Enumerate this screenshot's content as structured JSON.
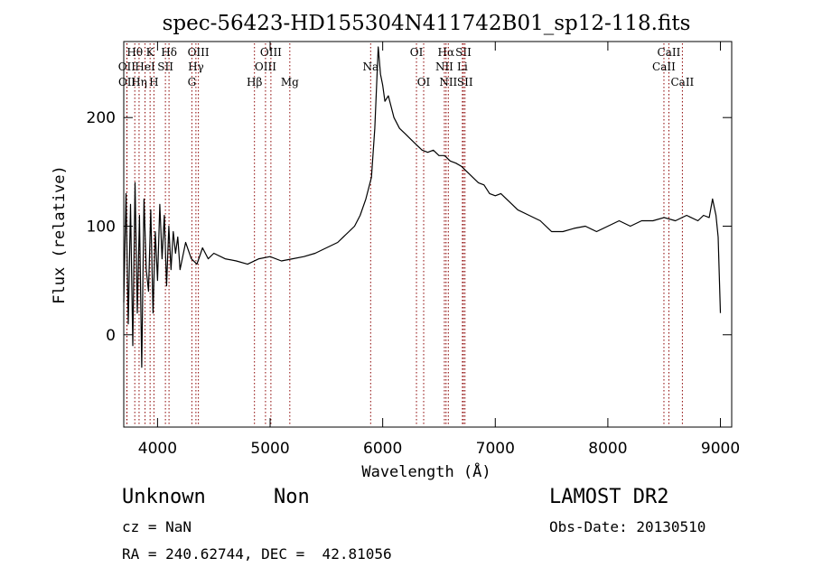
{
  "chart_data": {
    "type": "line",
    "title": "spec-56423-HD155304N411742B01_sp12-118.fits",
    "xlabel": "Wavelength (Å)",
    "ylabel": "Flux (relative)",
    "xlim": [
      3700,
      9100
    ],
    "ylim": [
      -85,
      270
    ],
    "x_ticks": [
      4000,
      5000,
      6000,
      7000,
      8000,
      9000
    ],
    "y_ticks": [
      0,
      100,
      200
    ],
    "grid": false,
    "line_color": "#000000",
    "marker_color": "#8b0000",
    "series": [
      {
        "x": [
          3700,
          3720,
          3740,
          3760,
          3780,
          3800,
          3820,
          3840,
          3860,
          3880,
          3900,
          3920,
          3940,
          3960,
          3980,
          4000,
          4020,
          4040,
          4060,
          4080,
          4100,
          4120,
          4140,
          4160,
          4180,
          4200,
          4250,
          4300,
          4350,
          4400,
          4450,
          4500,
          4600,
          4700,
          4800,
          4900,
          5000,
          5100,
          5200,
          5300,
          5400,
          5500,
          5600,
          5700,
          5750,
          5800,
          5850,
          5900,
          5930,
          5960,
          5980,
          6000,
          6020,
          6050,
          6100,
          6150,
          6200,
          6250,
          6300,
          6350,
          6400,
          6450,
          6500,
          6550,
          6600,
          6650,
          6700,
          6750,
          6800,
          6850,
          6900,
          6950,
          7000,
          7050,
          7100,
          7150,
          7200,
          7300,
          7400,
          7500,
          7600,
          7700,
          7800,
          7900,
          8000,
          8100,
          8200,
          8300,
          8400,
          8500,
          8600,
          8700,
          8800,
          8850,
          8900,
          8930,
          8950,
          8960,
          8980,
          9000
        ],
        "y": [
          30,
          130,
          10,
          120,
          -10,
          140,
          20,
          110,
          -30,
          125,
          60,
          40,
          115,
          20,
          95,
          50,
          120,
          70,
          110,
          45,
          100,
          60,
          95,
          75,
          90,
          60,
          85,
          70,
          65,
          80,
          70,
          75,
          70,
          68,
          65,
          70,
          72,
          68,
          70,
          72,
          75,
          80,
          85,
          95,
          100,
          110,
          125,
          145,
          190,
          265,
          240,
          230,
          215,
          220,
          200,
          190,
          185,
          180,
          175,
          170,
          168,
          170,
          165,
          165,
          160,
          158,
          155,
          150,
          145,
          140,
          138,
          130,
          128,
          130,
          125,
          120,
          115,
          110,
          105,
          95,
          95,
          98,
          100,
          95,
          100,
          105,
          100,
          105,
          105,
          108,
          105,
          110,
          105,
          110,
          108,
          125,
          115,
          110,
          90,
          20
        ]
      }
    ],
    "line_markers": [
      {
        "label": "Hθ",
        "x": 3798,
        "row": 1
      },
      {
        "label": "OII",
        "x": 3727,
        "row": 2
      },
      {
        "label": "OII",
        "x": 3729,
        "row": 3
      },
      {
        "label": "K",
        "x": 3934,
        "row": 1
      },
      {
        "label": "HeI",
        "x": 3889,
        "row": 2
      },
      {
        "label": "Hη",
        "x": 3836,
        "row": 3
      },
      {
        "label": "H",
        "x": 3968,
        "row": 3
      },
      {
        "label": "SII",
        "x": 4070,
        "row": 2
      },
      {
        "label": "Hδ",
        "x": 4102,
        "row": 1
      },
      {
        "label": "OIII",
        "x": 4363,
        "row": 1
      },
      {
        "label": "Hγ",
        "x": 4341,
        "row": 2
      },
      {
        "label": "G",
        "x": 4305,
        "row": 3
      },
      {
        "label": "Hβ",
        "x": 4861,
        "row": 3
      },
      {
        "label": "OIII",
        "x": 5007,
        "row": 1
      },
      {
        "label": "OIII",
        "x": 4959,
        "row": 2
      },
      {
        "label": "Mg",
        "x": 5175,
        "row": 3
      },
      {
        "label": "Na",
        "x": 5893,
        "row": 2
      },
      {
        "label": "OI",
        "x": 6300,
        "row": 1
      },
      {
        "label": "OI",
        "x": 6364,
        "row": 3
      },
      {
        "label": "Hα",
        "x": 6563,
        "row": 1
      },
      {
        "label": "NII",
        "x": 6548,
        "row": 2
      },
      {
        "label": "NII",
        "x": 6583,
        "row": 3
      },
      {
        "label": "SII",
        "x": 6717,
        "row": 1
      },
      {
        "label": "Li",
        "x": 6708,
        "row": 2
      },
      {
        "label": "SII",
        "x": 6731,
        "row": 3
      },
      {
        "label": "CaII",
        "x": 8542,
        "row": 1
      },
      {
        "label": "CaII",
        "x": 8498,
        "row": 2
      },
      {
        "label": "CaII",
        "x": 8662,
        "row": 3
      }
    ]
  },
  "info": {
    "class_name": "Unknown",
    "subclass": "Non",
    "survey": "LAMOST DR2",
    "cz": "cz = NaN",
    "obs_date": "Obs-Date: 20130510",
    "coords": "RA = 240.62744, DEC =  42.81056"
  }
}
